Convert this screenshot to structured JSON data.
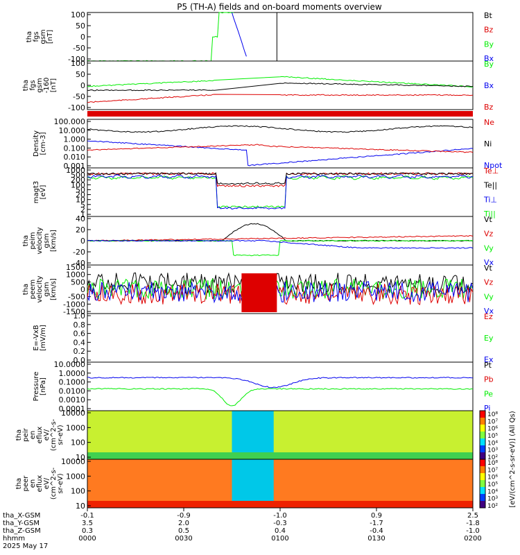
{
  "title": "P5 (TH-A) fields and on-board moments overview",
  "colors": {
    "black": "#000000",
    "red": "#dd0000",
    "green": "#00ee00",
    "blue": "#0000ee"
  },
  "chart_data": {
    "type": "line",
    "panels": [
      {
        "ylabel": [
          "tha",
          "fgs",
          "gsm",
          "[nT]"
        ],
        "yticks": [
          "100",
          "50",
          "0",
          "-50",
          "-100"
        ],
        "ylim": [
          -100,
          100
        ],
        "legend": [
          {
            "name": "Bt",
            "color": "black"
          },
          {
            "name": "Bz",
            "color": "red"
          },
          {
            "name": "By",
            "color": "green"
          },
          {
            "name": "Bx",
            "color": "blue"
          }
        ]
      },
      {
        "ylabel": [
          "tha",
          "fgs",
          "gsm",
          "-160",
          "[nT]"
        ],
        "yticks": [
          "100",
          "50",
          "0",
          "-50",
          "-100"
        ],
        "ylim": [
          -125,
          125
        ],
        "legend": [
          {
            "name": "By",
            "color": "green"
          },
          {
            "name": "Bx",
            "color": "blue"
          },
          {
            "name": "Bz",
            "color": "red"
          }
        ]
      },
      {
        "ylabel": [
          "Density",
          "[cm-3]"
        ],
        "yticks": [
          "100.000",
          "10.000",
          "1.000",
          "0.100",
          "0.010",
          "0.001"
        ],
        "ylim": [
          0.0007,
          200
        ],
        "scale": "log",
        "legend": [
          {
            "name": "Ne",
            "color": "red"
          },
          {
            "name": "Ni",
            "color": "black"
          },
          {
            "name": "Npot",
            "color": "blue"
          }
        ]
      },
      {
        "ylabel": [
          "magt3",
          "[eV]"
        ],
        "yticks": [
          "1000",
          "500",
          "200",
          "100",
          "50",
          "20",
          "10",
          "5",
          "2",
          "1"
        ],
        "ylim": [
          1,
          2500
        ],
        "scale": "log",
        "legend": [
          {
            "name": "Te⊥",
            "color": "red"
          },
          {
            "name": "Te||",
            "color": "black"
          },
          {
            "name": "Ti⊥",
            "color": "blue"
          },
          {
            "name": "Ti||",
            "color": "green"
          }
        ]
      },
      {
        "ylabel": [
          "tha",
          "peim",
          "velocity",
          "gsm",
          "[km/s]"
        ],
        "yticks": [
          "40",
          "20",
          "0",
          "-20",
          "-40"
        ],
        "ylim": [
          -45,
          45
        ],
        "legend": [
          {
            "name": "Vt",
            "color": "black"
          },
          {
            "name": "Vz",
            "color": "red"
          },
          {
            "name": "Vy",
            "color": "green"
          },
          {
            "name": "Vx",
            "color": "blue"
          }
        ]
      },
      {
        "ylabel": [
          "tha",
          "peem",
          "velocity",
          "gsm",
          "[km/s]"
        ],
        "yticks": [
          "1500",
          "1000",
          "500",
          "0",
          "-500",
          "-1000",
          "-1500"
        ],
        "ylim": [
          -1500,
          1500
        ],
        "legend": [
          {
            "name": "Vt",
            "color": "black"
          },
          {
            "name": "Vz",
            "color": "red"
          },
          {
            "name": "Vy",
            "color": "green"
          },
          {
            "name": "Vx",
            "color": "blue"
          }
        ]
      },
      {
        "ylabel": [
          "E=-VxB",
          "[mV/m]"
        ],
        "yticks": [
          "1.0",
          "0.8",
          "0.6",
          "0.4",
          "0.2",
          "0.0"
        ],
        "ylim": [
          0,
          1
        ],
        "legend": [
          {
            "name": "Ez",
            "color": "red"
          },
          {
            "name": "Ey",
            "color": "green"
          },
          {
            "name": "Ex",
            "color": "blue"
          }
        ]
      },
      {
        "ylabel": [
          "Pressure",
          "[nPa]"
        ],
        "yticks": [
          "10.0000",
          "1.0000",
          "0.1000",
          "0.0100",
          "0.0010",
          "0.0001"
        ],
        "ylim": [
          0.0001,
          30
        ],
        "scale": "log",
        "legend": [
          {
            "name": "Pt",
            "color": "black"
          },
          {
            "name": "Pb",
            "color": "red"
          },
          {
            "name": "Pe",
            "color": "green"
          },
          {
            "name": "Pi",
            "color": "blue"
          }
        ]
      },
      {
        "ylabel": [
          "tha",
          "peir",
          "en",
          "eflux",
          "eV/",
          "(cm^2-s-",
          "sr-eV)"
        ],
        "yticks": [
          "10000",
          "1000",
          "100",
          "10"
        ],
        "type": "spectrogram"
      },
      {
        "ylabel": [
          "tha",
          "peer",
          "en",
          "eflux",
          "eV/",
          "(cm^2-s-",
          "sr-eV)"
        ],
        "yticks": [
          "10000",
          "1000",
          "100",
          "10"
        ],
        "type": "spectrogram"
      }
    ],
    "colorbar": {
      "label": "[eV/(cm^2-s-sr-eV)] (All Qs)",
      "ticks": [
        "10⁸",
        "10⁷",
        "10⁶",
        "10⁵",
        "10⁴",
        "10³",
        "10²"
      ]
    },
    "xaxis": {
      "row_labels": [
        "tha_X-GSM",
        "tha_Y-GSM",
        "tha_Z-GSM",
        "hhmm",
        "2025 May 17"
      ],
      "columns": [
        {
          "x": 0,
          "values": [
            "-0.1",
            "3.5",
            "0.3",
            "0000"
          ]
        },
        {
          "x": 30,
          "values": [
            "-0.9",
            "2.0",
            "0.5",
            "0030"
          ]
        },
        {
          "x": 60,
          "values": [
            "-1.0",
            "-0.3",
            "0.4",
            "0100"
          ]
        },
        {
          "x": 90,
          "values": [
            "0.9",
            "-1.7",
            "-0.4",
            "0130"
          ]
        },
        {
          "x": 120,
          "values": [
            "2.5",
            "-1.8",
            "-1.0",
            "0200"
          ]
        }
      ],
      "xlim": [
        0,
        120
      ],
      "unit": "minutes from 0000"
    }
  }
}
